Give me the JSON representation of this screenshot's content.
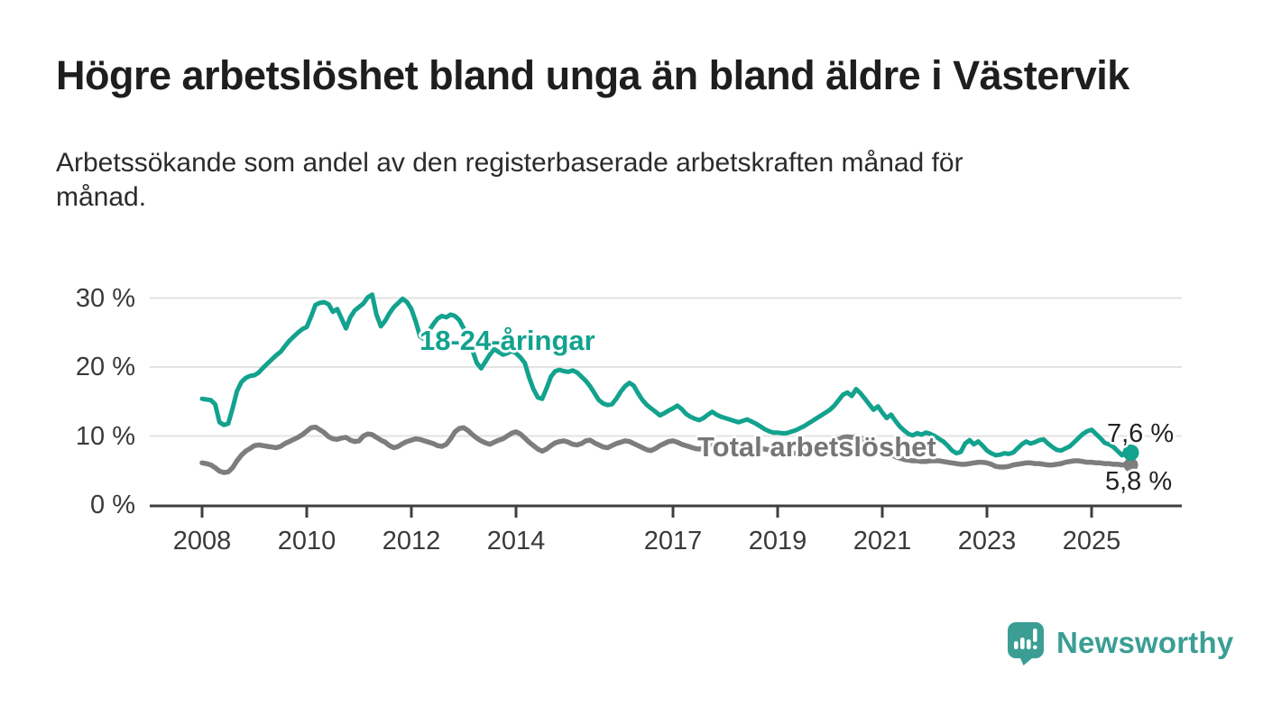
{
  "header": {
    "title": "Högre arbetslöshet bland unga än bland äldre i Västervik",
    "subtitle_line1": "Arbetssökande som andel av den registerbaserade arbetskraften månad för",
    "subtitle_line2": "månad."
  },
  "chart_data": {
    "type": "line",
    "title": "Högre arbetslöshet bland unga än bland äldre i Västervik",
    "subtitle": "Arbetssökande som andel av den registerbaserade arbetskraften månad för månad.",
    "x_unit": "month",
    "x_start": "2008-01",
    "x_end": "2025-10",
    "x_tick_years": [
      2008,
      2010,
      2012,
      2014,
      2017,
      2019,
      2021,
      2023,
      2025
    ],
    "x_tick_labels": [
      "2008",
      "2010",
      "2012",
      "2014",
      "2017",
      "2019",
      "2021",
      "2023",
      "2025"
    ],
    "y_ticks": [
      0,
      10,
      20,
      30
    ],
    "y_tick_labels": [
      "0 %",
      "10 %",
      "20 %",
      "30 %"
    ],
    "ylim": [
      0,
      32
    ],
    "grid": "horizontal",
    "legend_position": "inline-annotations",
    "colors": {
      "young": "#12a28e",
      "total": "#7d7d7d",
      "grid": "#e3e3e3",
      "axis": "#3f3f3f",
      "value_label": "#222222"
    },
    "series": [
      {
        "id": "young",
        "label": "18-24-åringar",
        "color": "#12a28e",
        "end_label": "7,6 %",
        "last_value": 7.6,
        "values": [
          15.4,
          15.3,
          15.2,
          14.6,
          12.0,
          11.6,
          11.8,
          14.0,
          16.5,
          17.8,
          18.4,
          18.7,
          18.8,
          19.2,
          19.9,
          20.5,
          21.1,
          21.7,
          22.2,
          23.0,
          23.8,
          24.4,
          25.0,
          25.5,
          25.8,
          27.3,
          29.0,
          29.3,
          29.4,
          29.1,
          28.0,
          28.4,
          27.0,
          25.6,
          27.2,
          28.2,
          28.7,
          29.2,
          30.1,
          30.5,
          27.6,
          25.9,
          26.7,
          27.8,
          28.7,
          29.3,
          29.9,
          29.4,
          28.4,
          26.6,
          24.4,
          24.0,
          25.2,
          26.2,
          27.0,
          27.4,
          27.2,
          27.6,
          27.4,
          26.8,
          25.6,
          24.4,
          22.4,
          20.6,
          19.8,
          20.8,
          21.8,
          22.6,
          22.2,
          21.8,
          22.0,
          22.3,
          22.0,
          21.4,
          20.6,
          18.5,
          16.8,
          15.6,
          15.4,
          16.9,
          18.6,
          19.4,
          19.6,
          19.4,
          19.3,
          19.5,
          19.2,
          18.6,
          18.0,
          17.2,
          16.2,
          15.2,
          14.7,
          14.5,
          14.6,
          15.4,
          16.4,
          17.2,
          17.7,
          17.3,
          16.2,
          15.2,
          14.5,
          14.0,
          13.5,
          13.0,
          13.3,
          13.7,
          14.0,
          14.4,
          13.9,
          13.2,
          12.8,
          12.5,
          12.3,
          12.6,
          13.1,
          13.5,
          13.1,
          12.8,
          12.6,
          12.4,
          12.2,
          12.0,
          12.2,
          12.4,
          12.1,
          11.8,
          11.4,
          11.0,
          10.7,
          10.5,
          10.5,
          10.4,
          10.4,
          10.6,
          10.8,
          11.1,
          11.4,
          11.8,
          12.2,
          12.6,
          13.0,
          13.4,
          13.8,
          14.4,
          15.2,
          16.0,
          16.3,
          15.8,
          16.8,
          16.2,
          15.4,
          14.6,
          13.8,
          14.3,
          13.4,
          12.6,
          13.1,
          12.2,
          11.4,
          10.8,
          10.3,
          10.1,
          10.4,
          10.2,
          10.5,
          10.3,
          10.0,
          9.6,
          9.2,
          8.6,
          7.9,
          7.5,
          7.7,
          8.9,
          9.4,
          8.8,
          9.2,
          8.6,
          7.9,
          7.5,
          7.2,
          7.3,
          7.5,
          7.4,
          7.6,
          8.2,
          8.8,
          9.2,
          8.9,
          9.1,
          9.4,
          9.5,
          8.9,
          8.4,
          8.0,
          7.9,
          8.2,
          8.5,
          9.1,
          9.7,
          10.3,
          10.7,
          10.9,
          10.3,
          9.7,
          9.0,
          8.8,
          8.4,
          7.8,
          7.2,
          7.9,
          7.6
        ]
      },
      {
        "id": "total",
        "label": "Total arbetslöshet",
        "color": "#7d7d7d",
        "end_label": "5,8 %",
        "last_value": 5.8,
        "values": [
          6.1,
          6.0,
          5.8,
          5.4,
          4.9,
          4.7,
          4.8,
          5.4,
          6.4,
          7.2,
          7.8,
          8.2,
          8.6,
          8.7,
          8.6,
          8.5,
          8.4,
          8.3,
          8.5,
          8.9,
          9.2,
          9.5,
          9.8,
          10.2,
          10.7,
          11.2,
          11.3,
          10.9,
          10.5,
          9.9,
          9.6,
          9.5,
          9.7,
          9.8,
          9.4,
          9.2,
          9.3,
          10.0,
          10.3,
          10.2,
          9.8,
          9.4,
          9.1,
          8.6,
          8.3,
          8.5,
          8.9,
          9.2,
          9.4,
          9.6,
          9.5,
          9.3,
          9.1,
          8.9,
          8.6,
          8.5,
          8.8,
          9.6,
          10.6,
          11.1,
          11.2,
          10.8,
          10.2,
          9.7,
          9.3,
          9.0,
          8.8,
          9.1,
          9.4,
          9.6,
          10.0,
          10.4,
          10.6,
          10.3,
          9.7,
          9.1,
          8.6,
          8.1,
          7.8,
          8.1,
          8.6,
          9.0,
          9.2,
          9.3,
          9.1,
          8.8,
          8.7,
          8.9,
          9.3,
          9.4,
          9.0,
          8.7,
          8.4,
          8.3,
          8.6,
          8.9,
          9.1,
          9.3,
          9.2,
          8.9,
          8.6,
          8.3,
          8.0,
          7.9,
          8.2,
          8.6,
          8.9,
          9.2,
          9.3,
          9.1,
          8.8,
          8.6,
          8.4,
          8.2,
          8.1,
          8.3,
          8.6,
          8.8,
          8.9,
          8.8,
          8.6,
          8.4,
          8.2,
          8.0,
          7.9,
          7.8,
          7.9,
          8.1,
          8.2,
          8.1,
          8.0,
          7.9,
          7.8,
          7.7,
          7.6,
          7.5,
          7.5,
          7.6,
          7.8,
          8.0,
          8.1,
          8.2,
          8.3,
          8.4,
          8.7,
          9.1,
          9.5,
          9.8,
          9.9,
          9.8,
          9.9,
          9.7,
          9.4,
          9.0,
          8.6,
          8.3,
          7.9,
          7.6,
          7.3,
          7.0,
          6.8,
          6.6,
          6.5,
          6.4,
          6.4,
          6.3,
          6.3,
          6.4,
          6.4,
          6.4,
          6.3,
          6.2,
          6.1,
          6.0,
          5.9,
          5.9,
          6.0,
          6.1,
          6.2,
          6.2,
          6.1,
          5.9,
          5.6,
          5.5,
          5.5,
          5.6,
          5.8,
          5.9,
          6.0,
          6.1,
          6.1,
          6.0,
          6.0,
          5.9,
          5.8,
          5.8,
          5.9,
          6.0,
          6.2,
          6.3,
          6.4,
          6.4,
          6.3,
          6.2,
          6.2,
          6.1,
          6.1,
          6.0,
          6.0,
          5.9,
          5.9,
          5.8,
          5.9,
          5.8
        ]
      }
    ]
  },
  "footer": {
    "brand": "Newsworthy",
    "brand_color": "#3b9e95",
    "logo_icon": "speech-bubble-bar-chart-icon"
  }
}
